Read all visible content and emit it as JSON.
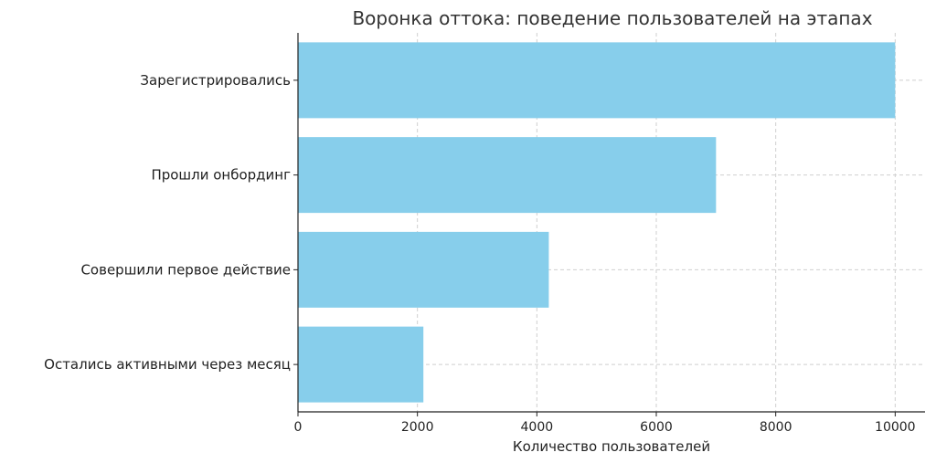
{
  "chart_data": {
    "type": "bar",
    "orientation": "horizontal",
    "title": "Воронка оттока: поведение пользователей на этапах",
    "xlabel": "Количество пользователей",
    "ylabel": "",
    "categories": [
      "Зарегистрировались",
      "Прошли онбординг",
      "Совершили первое действие",
      "Остались активными через месяц"
    ],
    "values": [
      10000,
      7000,
      4200,
      2100
    ],
    "xlim": [
      0,
      10500
    ],
    "xticks": [
      0,
      2000,
      4000,
      6000,
      8000,
      10000
    ],
    "xtick_labels": [
      "0",
      "2000",
      "4000",
      "6000",
      "8000",
      "10000"
    ],
    "grid": true,
    "bar_color": "#87CEEB"
  }
}
